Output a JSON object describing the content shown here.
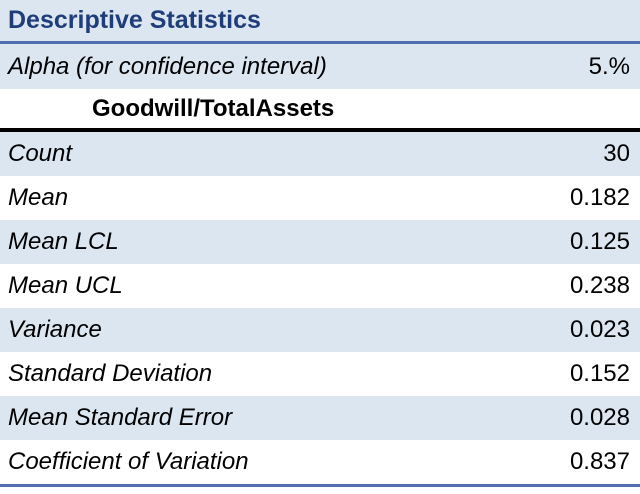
{
  "title": "Descriptive Statistics",
  "alpha": {
    "label": "Alpha (for confidence interval)",
    "value": "5.%"
  },
  "column_header": "Goodwill/TotalAssets",
  "stats": [
    {
      "label": "Count",
      "value": "30"
    },
    {
      "label": "Mean",
      "value": "0.182"
    },
    {
      "label": "Mean LCL",
      "value": "0.125"
    },
    {
      "label": "Mean UCL",
      "value": "0.238"
    },
    {
      "label": "Variance",
      "value": "0.023"
    },
    {
      "label": "Standard Deviation",
      "value": "0.152"
    },
    {
      "label": "Mean Standard Error",
      "value": "0.028"
    },
    {
      "label": "Coefficient of Variation",
      "value": "0.837"
    }
  ],
  "colors": {
    "title_text": "#1f3e79",
    "band_fill": "#dce6f1",
    "rule": "#4f6fb0"
  }
}
